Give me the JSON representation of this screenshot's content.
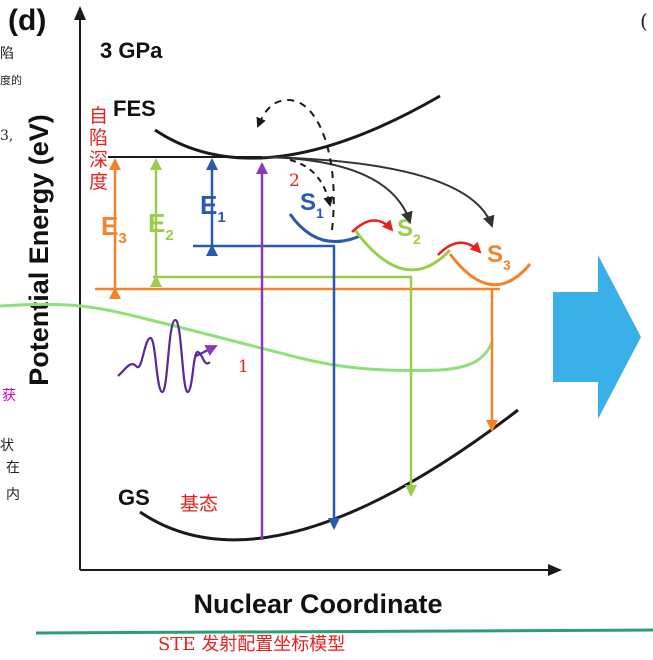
{
  "panel_label": "(d)",
  "pressure_label": "3 GPa",
  "y_axis_label": "Potential Energy (eV)",
  "x_axis_label": "Nuclear Coordinate",
  "states": {
    "fes": "FES",
    "gs": "GS",
    "s1": {
      "base": "S",
      "sub": "1"
    },
    "s2": {
      "base": "S",
      "sub": "2"
    },
    "s3": {
      "base": "S",
      "sub": "3"
    }
  },
  "energies": {
    "e1": {
      "base": "E",
      "sub": "1"
    },
    "e2": {
      "base": "E",
      "sub": "2"
    },
    "e3": {
      "base": "E",
      "sub": "3"
    }
  },
  "annotations": {
    "self_trap_depth": [
      "自",
      "陷",
      "深",
      "度"
    ],
    "ground_state": "基态",
    "step_1": "1",
    "step_2": "2"
  },
  "caption": "STE 发射配置坐标模型",
  "side_snippets": {
    "left_top_1": "陷",
    "left_top_2": "度的",
    "left_mid": "3,",
    "left_magenta": "获",
    "left_bottom_1": "状",
    "left_bottom_2": "在",
    "left_bottom_3": "内",
    "right_top": "("
  },
  "colors": {
    "e1_blue": "#2a5ab0",
    "e2_green": "#9acd4a",
    "e3_orange": "#f5822a",
    "fes_curve": "#1a1a1a",
    "photon_purple": "#6a2aa8",
    "green_trace": "#8fe07a",
    "arrow_block": "#3ab0e8",
    "red_hop": "#e8201f",
    "teal_rule": "#2aa070",
    "annotation_red": "#e8201f",
    "magenta_text": "#cc00cc"
  }
}
